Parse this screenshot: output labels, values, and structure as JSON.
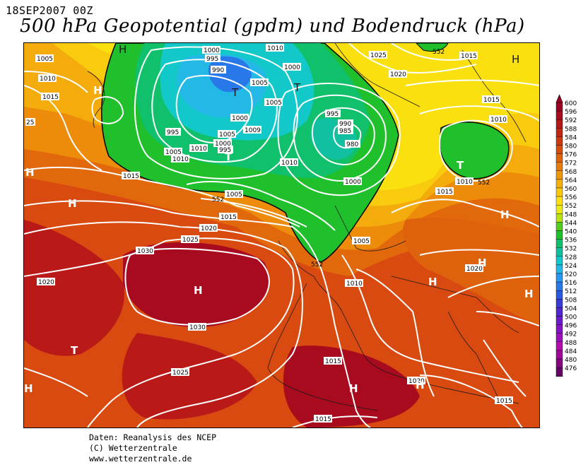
{
  "header": {
    "date": "18SEP2007 00Z",
    "title": "500 hPa Geopotential (gpdm) und Bodendruck (hPa)"
  },
  "footer": {
    "line1": "Daten: Reanalysis des NCEP",
    "line2": "(C) Wetterzentrale",
    "line3": "www.wetterzentrale.de"
  },
  "colorbar": {
    "levels": [
      "600",
      "596",
      "592",
      "588",
      "584",
      "580",
      "576",
      "572",
      "568",
      "564",
      "560",
      "556",
      "552",
      "548",
      "544",
      "540",
      "536",
      "532",
      "528",
      "524",
      "520",
      "516",
      "512",
      "508",
      "504",
      "500",
      "496",
      "492",
      "488",
      "484",
      "480",
      "476"
    ],
    "colors": [
      "#9b0025",
      "#a80a1e",
      "#b51818",
      "#c12814",
      "#cb3a10",
      "#d54e0e",
      "#de640c",
      "#e67c0a",
      "#ee970a",
      "#f3b00c",
      "#f8c90e",
      "#fbdf10",
      "#eaea12",
      "#b8e214",
      "#54cc1e",
      "#20c02c",
      "#10c06a",
      "#10c0a0",
      "#12c8c8",
      "#24b8e6",
      "#2898f0",
      "#2878ea",
      "#2a58e0",
      "#3a3ad6",
      "#5028d0",
      "#6a1ccc",
      "#8414c4",
      "#9c10bc",
      "#b40cae",
      "#a0089a",
      "#860680",
      "#660466"
    ],
    "colors_note": ""
  },
  "map": {
    "labels": {
      "high": "H",
      "low": "T",
      "iso_1030": "1030",
      "iso_1025": "1025",
      "iso_1020": "1020",
      "iso_1015": "1015",
      "iso_1010": "1010",
      "iso_1005": "1005",
      "iso_1000": "1000",
      "iso_995": "995",
      "iso_990": "990",
      "iso_985": "985",
      "iso_980": "980",
      "iso_25": "25",
      "iso_1009": "1009",
      "gp_552": "552"
    }
  }
}
